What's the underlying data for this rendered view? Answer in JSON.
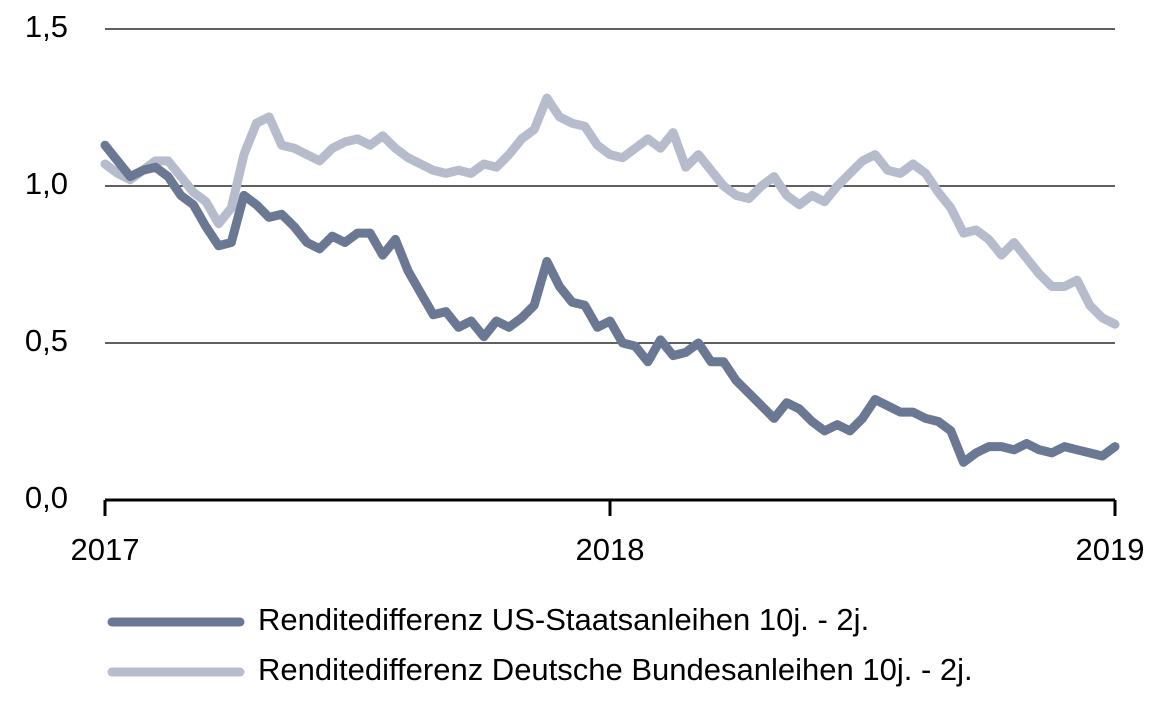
{
  "chart_data": {
    "type": "line",
    "x": [
      2017.0,
      2017.025,
      2017.05,
      2017.075,
      2017.1,
      2017.125,
      2017.15,
      2017.175,
      2017.2,
      2017.225,
      2017.25,
      2017.275,
      2017.3,
      2017.325,
      2017.35,
      2017.375,
      2017.4,
      2017.425,
      2017.45,
      2017.475,
      2017.5,
      2017.525,
      2017.55,
      2017.575,
      2017.6,
      2017.625,
      2017.65,
      2017.675,
      2017.7,
      2017.725,
      2017.75,
      2017.775,
      2017.8,
      2017.825,
      2017.85,
      2017.875,
      2017.9,
      2017.925,
      2017.95,
      2017.975,
      2018.0,
      2018.025,
      2018.05,
      2018.075,
      2018.1,
      2018.125,
      2018.15,
      2018.175,
      2018.2,
      2018.225,
      2018.25,
      2018.275,
      2018.3,
      2018.325,
      2018.35,
      2018.375,
      2018.4,
      2018.425,
      2018.45,
      2018.475,
      2018.5,
      2018.525,
      2018.55,
      2018.575,
      2018.6,
      2018.625,
      2018.65,
      2018.675,
      2018.7,
      2018.725,
      2018.75,
      2018.775,
      2018.8,
      2018.825,
      2018.85,
      2018.875,
      2018.9,
      2018.925,
      2018.95,
      2018.975,
      2019.0
    ],
    "series": [
      {
        "name": "Renditedifferenz US-Staatsanleihen 10j. - 2j.",
        "color": "#6b7894",
        "values": [
          1.13,
          1.08,
          1.03,
          1.05,
          1.06,
          1.03,
          0.97,
          0.94,
          0.87,
          0.81,
          0.82,
          0.97,
          0.94,
          0.9,
          0.91,
          0.87,
          0.82,
          0.8,
          0.84,
          0.82,
          0.85,
          0.85,
          0.78,
          0.83,
          0.73,
          0.66,
          0.59,
          0.6,
          0.55,
          0.57,
          0.52,
          0.57,
          0.55,
          0.58,
          0.62,
          0.76,
          0.68,
          0.63,
          0.62,
          0.55,
          0.57,
          0.5,
          0.49,
          0.44,
          0.51,
          0.46,
          0.47,
          0.5,
          0.44,
          0.44,
          0.38,
          0.34,
          0.3,
          0.26,
          0.31,
          0.29,
          0.25,
          0.22,
          0.24,
          0.22,
          0.26,
          0.32,
          0.3,
          0.28,
          0.28,
          0.26,
          0.25,
          0.22,
          0.12,
          0.15,
          0.17,
          0.17,
          0.16,
          0.18,
          0.16,
          0.15,
          0.17,
          0.16,
          0.15,
          0.14,
          0.17
        ]
      },
      {
        "name": "Renditedifferenz Deutsche Bundesanleihen 10j. - 2j.",
        "color": "#b6bccb",
        "values": [
          1.07,
          1.04,
          1.02,
          1.05,
          1.08,
          1.08,
          1.03,
          0.98,
          0.95,
          0.88,
          0.93,
          1.1,
          1.2,
          1.22,
          1.13,
          1.12,
          1.1,
          1.08,
          1.12,
          1.14,
          1.15,
          1.13,
          1.16,
          1.12,
          1.09,
          1.07,
          1.05,
          1.04,
          1.05,
          1.04,
          1.07,
          1.06,
          1.1,
          1.15,
          1.18,
          1.28,
          1.22,
          1.2,
          1.19,
          1.13,
          1.1,
          1.09,
          1.12,
          1.15,
          1.12,
          1.17,
          1.06,
          1.1,
          1.05,
          1.0,
          0.97,
          0.96,
          1.0,
          1.03,
          0.97,
          0.94,
          0.97,
          0.95,
          1.0,
          1.04,
          1.08,
          1.1,
          1.05,
          1.04,
          1.07,
          1.04,
          0.98,
          0.93,
          0.85,
          0.86,
          0.83,
          0.78,
          0.82,
          0.77,
          0.72,
          0.68,
          0.68,
          0.7,
          0.62,
          0.58,
          0.56
        ]
      }
    ],
    "xlim": [
      2017,
      2019
    ],
    "xticks": [
      2017,
      2018,
      2019
    ],
    "ylim": [
      0,
      1.5
    ],
    "yticks": [
      {
        "value": 0,
        "label": "0,0"
      },
      {
        "value": 0.5,
        "label": "0,5"
      },
      {
        "value": 1.0,
        "label": "1,0"
      },
      {
        "value": 1.5,
        "label": "1,5"
      }
    ],
    "grid": true,
    "legend": "bottom"
  }
}
